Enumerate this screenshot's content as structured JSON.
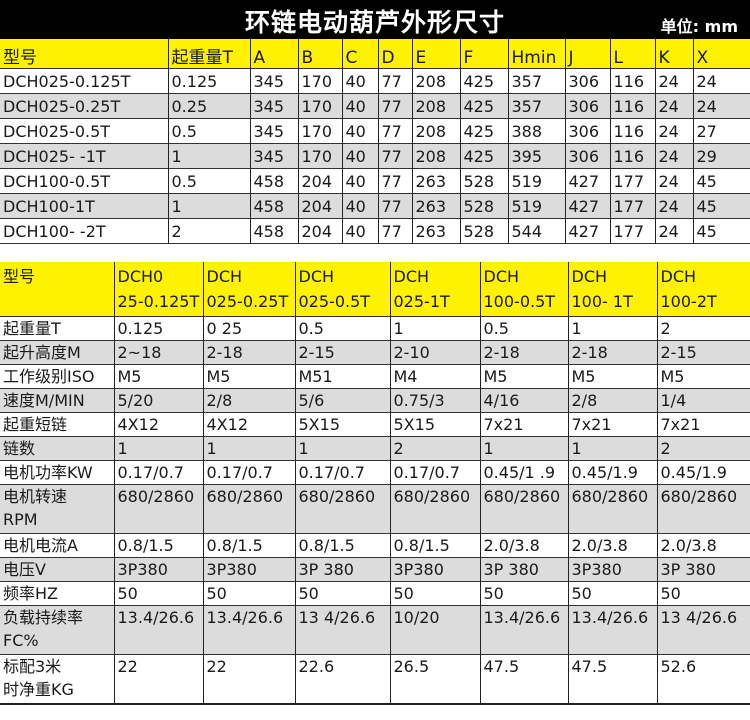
{
  "title": "环链电动葫芦外形尺寸",
  "unit": "单位: mm",
  "colors": {
    "header_bg": "#fff200",
    "title_bg": "#000000",
    "stripe": "#dcdcdc"
  },
  "dimensions": {
    "headers": [
      "型号",
      "起重量T",
      "A",
      "B",
      "C",
      "D",
      "E",
      "F",
      "Hmin",
      "J",
      "L",
      "K",
      "X"
    ],
    "rows": [
      [
        "DCH025-0.125T",
        "0.125",
        "345",
        "170",
        "40",
        "77",
        "208",
        "425",
        "357",
        "306",
        "116",
        "24",
        "24"
      ],
      [
        "DCH025-0.25T",
        "0.25",
        "345",
        "170",
        "40",
        "77",
        "208",
        "425",
        "357",
        "306",
        "116",
        "24",
        "24"
      ],
      [
        "DCH025-0.5T",
        "0.5",
        "345",
        "170",
        "40",
        "77",
        "208",
        "425",
        "388",
        "306",
        "116",
        "24",
        "27"
      ],
      [
        "DCH025- -1T",
        "1",
        "345",
        "170",
        "40",
        "77",
        "208",
        "425",
        "395",
        "306",
        "116",
        "24",
        "29"
      ],
      [
        "DCH100-0.5T",
        "0.5",
        "458",
        "204",
        "40",
        "77",
        "263",
        "528",
        "519",
        "427",
        "177",
        "24",
        "45"
      ],
      [
        "DCH100-1T",
        "1",
        "458",
        "204",
        "40",
        "77",
        "263",
        "528",
        "519",
        "427",
        "177",
        "24",
        "45"
      ],
      [
        "DCH100- -2T",
        "2",
        "458",
        "204",
        "40",
        "77",
        "263",
        "528",
        "544",
        "427",
        "177",
        "24",
        "45"
      ]
    ]
  },
  "specs": {
    "headers": [
      [
        "型号"
      ],
      [
        "DCH0",
        "25-0.125T"
      ],
      [
        "DCH",
        "025-0.25T"
      ],
      [
        "DCH",
        "025-0.5T"
      ],
      [
        "DCH",
        "025-1T"
      ],
      [
        "DCH",
        "100-0.5T"
      ],
      [
        "DCH",
        "100- 1T"
      ],
      [
        "DCH",
        "100-2T"
      ]
    ],
    "rows": [
      [
        [
          "起重量T"
        ],
        "0.125",
        "0 25",
        "0.5",
        "1",
        "0.5",
        "1",
        "2"
      ],
      [
        [
          "起升高度M"
        ],
        "2~18",
        "2-18",
        "2-15",
        "2-10",
        "2-18",
        "2-18",
        "2-15"
      ],
      [
        [
          "工作级别ISO"
        ],
        "M5",
        "M5",
        "M51",
        "M4",
        "M5",
        "M5",
        "M5"
      ],
      [
        [
          "速度M/MIN"
        ],
        "5/20",
        "2/8",
        "5/6",
        "0.75/3",
        "4/16",
        "2/8",
        "1/4"
      ],
      [
        [
          "起重短链"
        ],
        "4X12",
        "4X12",
        "5X15",
        "5X15",
        "7x21",
        "7x21",
        "7x21"
      ],
      [
        [
          "链数"
        ],
        "1",
        "1",
        "1",
        "2",
        "1",
        "1",
        "2"
      ],
      [
        [
          "电机功率KW"
        ],
        "0.17/0.7",
        "0.17/0.7",
        "0.17/0.7",
        "0.17/0.7",
        "0.45/1 .9",
        "0.45/1.9",
        "0.45/1.9"
      ],
      [
        [
          "电机转速",
          "RPM"
        ],
        "680/2860",
        "680/2860",
        "680/2860",
        "680/2860",
        "680/2860",
        "680/2860",
        "680/2860"
      ],
      [
        [
          "电机电流A"
        ],
        "0.8/1.5",
        "0.8/1.5",
        "0.8/1.5",
        "0.8/1.5",
        "2.0/3.8",
        "2.0/3.8",
        "2.0/3.8"
      ],
      [
        [
          "电压V"
        ],
        "3P380",
        "3P380",
        "3P 380",
        "3P380",
        "3P 380",
        "3P380",
        "3P 380"
      ],
      [
        [
          "频率HZ"
        ],
        "50",
        "50",
        "50",
        "50",
        "50",
        "50",
        "50"
      ],
      [
        [
          "负载持续率",
          "FC%"
        ],
        "13.4/26.6",
        "13.4/26.6",
        "13 4/26.6",
        "10/20",
        "13.4/26.6",
        "13.4/26.6",
        "13 4/26.6"
      ],
      [
        [
          "标配3米",
          "时净重KG"
        ],
        "22",
        "22",
        "22.6",
        "26.5",
        "47.5",
        "47.5",
        "52.6"
      ]
    ]
  }
}
